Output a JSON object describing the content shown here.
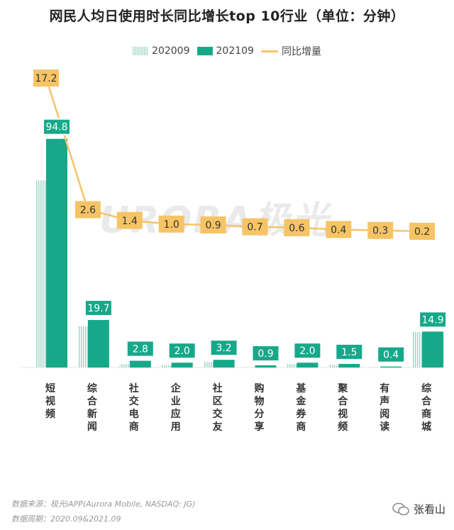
{
  "title": "网民人均日使用时长同比增长top 10行业（单位：分钟）",
  "legend": {
    "a": "202009",
    "b": "202109",
    "c": "同比增量"
  },
  "watermark": "URORA极光",
  "footer": {
    "source": "数据来源：极光iAPP(Aurora Mobile, NASDAQ: JG)",
    "period": "数据周期：2020.09&2021.09"
  },
  "brand": "张看山",
  "colors": {
    "bar_2020": "#9fd6c6",
    "bar_2021": "#17a88a",
    "line": "#f4c56a",
    "line_label_bg": "#f6c464"
  },
  "chart_data": {
    "type": "bar",
    "categories": [
      "短视频",
      "综合新闻",
      "社交电商",
      "企业应用",
      "社区交友",
      "购物分享",
      "基金券商",
      "聚合视频",
      "有声阅读",
      "综合商城"
    ],
    "series": [
      {
        "name": "202009",
        "values": [
          77.6,
          17.1,
          1.4,
          1.0,
          2.3,
          0.2,
          1.4,
          1.1,
          0.1,
          14.7
        ]
      },
      {
        "name": "202109",
        "values": [
          94.8,
          19.7,
          2.8,
          2.0,
          3.2,
          0.9,
          2.0,
          1.5,
          0.4,
          14.9
        ]
      }
    ],
    "line": {
      "name": "同比增量",
      "values": [
        17.2,
        2.6,
        1.4,
        1.0,
        0.9,
        0.7,
        0.6,
        0.4,
        0.3,
        0.2
      ]
    }
  }
}
